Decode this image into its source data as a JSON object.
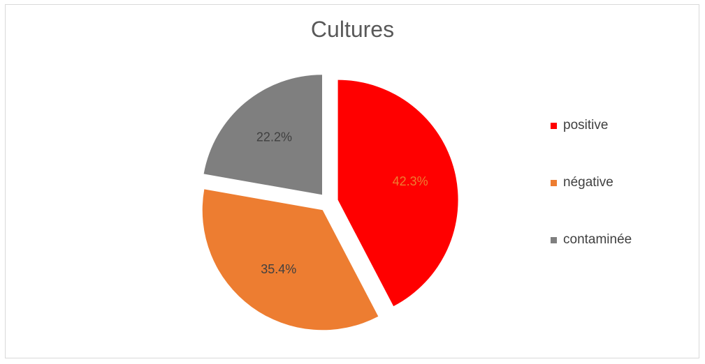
{
  "chart_data": {
    "type": "pie",
    "title": "Cultures",
    "categories": [
      "positive",
      "négative",
      "contaminée"
    ],
    "values": [
      42.3,
      35.4,
      22.2
    ],
    "data_labels": [
      "42.3%",
      "35.4%",
      "22.2%"
    ],
    "colors": [
      "#ff0000",
      "#ed7d31",
      "#7f7f7f"
    ],
    "exploded": true,
    "start_angle_deg": 0,
    "direction": "clockwise",
    "legend": {
      "position": "right",
      "entries": [
        "positive",
        "négative",
        "contaminée"
      ]
    }
  }
}
